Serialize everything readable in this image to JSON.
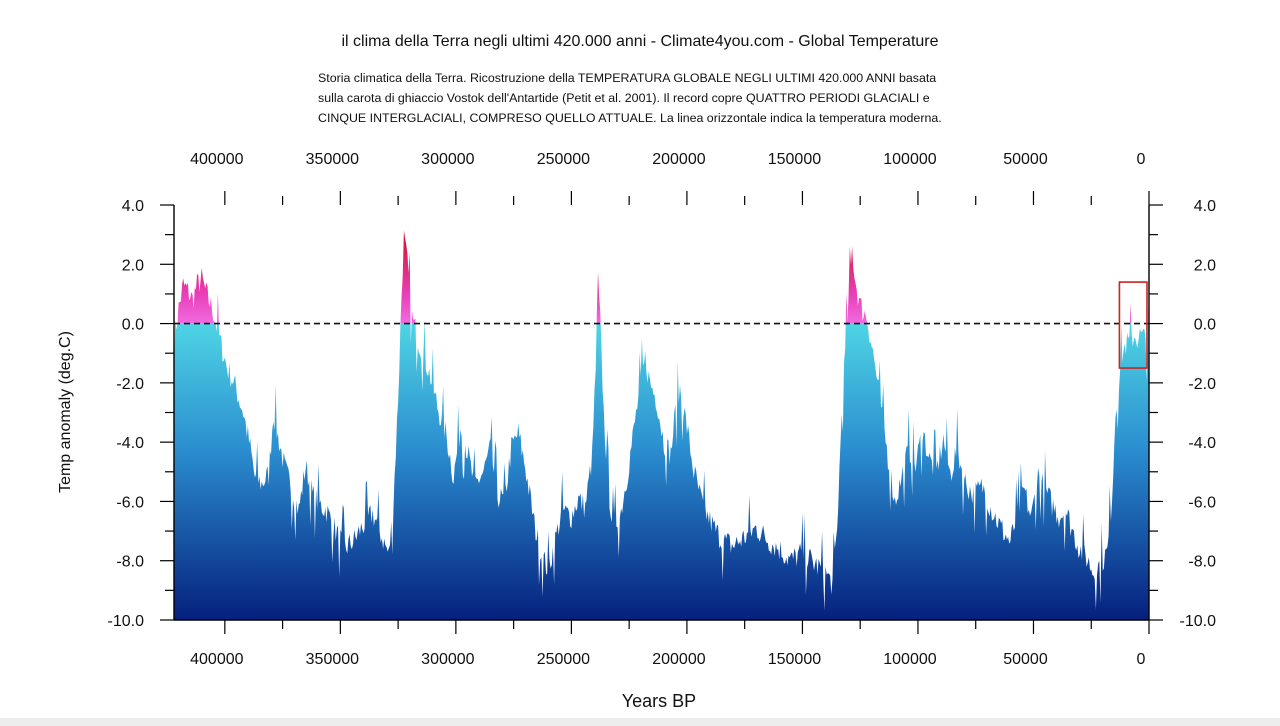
{
  "title": "il clima della Terra negli ultimi 420.000 anni - Climate4you.com - Global Temperature",
  "subtitle_lines": [
    "Storia climatica della Terra. Ricostruzione della TEMPERATURA GLOBALE NEGLI ULTIMI 420.000 ANNI basata",
    "sulla carota di ghiaccio Vostok dell'Antartide (Petit et al. 2001). Il record copre QUATTRO PERIODI GLACIALI e",
    "CINQUE INTERGLACIALI, COMPRESO QUELLO ATTUALE. La linea orizzontale indica la temperatura moderna."
  ],
  "chart_data": {
    "type": "area",
    "title": "il clima della Terra negli ultimi 420.000 anni - Climate4you.com - Global Temperature",
    "xlabel": "Years BP",
    "ylabel": "Temp anomaly (deg.C)",
    "xlim": [
      422000,
      0
    ],
    "ylim": [
      -10,
      4
    ],
    "x_reversed": true,
    "x_ticks": [
      "400000",
      "350000",
      "300000",
      "250000",
      "200000",
      "150000",
      "100000",
      "50000",
      "0"
    ],
    "x_tick_values": [
      400000,
      350000,
      300000,
      250000,
      200000,
      150000,
      100000,
      50000,
      0
    ],
    "y_ticks": [
      "4.0",
      "2.0",
      "0.0",
      "-2.0",
      "-4.0",
      "-6.0",
      "-8.0",
      "-10.0"
    ],
    "y_tick_values": [
      4,
      2,
      0,
      -2,
      -4,
      -6,
      -8,
      -10
    ],
    "reference_line": {
      "y": 0,
      "style": "dashed"
    },
    "highlight_box": {
      "x_range": [
        11500,
        0
      ],
      "y_range": [
        -1.5,
        1.4
      ]
    },
    "colors": {
      "fill_top": "#4fd4e4",
      "fill_mid": "#2b8fd0",
      "fill_bottom": "#06207e",
      "warm_low": "#f06adf",
      "warm_high": "#d40d1f",
      "highlight_box": "#cc2222",
      "axis": "#000000"
    },
    "series": [
      {
        "values": [
          [
            422000,
            -0.5
          ],
          [
            420000,
            0.5
          ],
          [
            418000,
            1.3
          ],
          [
            416000,
            1.1
          ],
          [
            414000,
            0.8
          ],
          [
            412000,
            1.3
          ],
          [
            410000,
            1.5
          ],
          [
            408000,
            1.0
          ],
          [
            405000,
            0.4
          ],
          [
            402000,
            -0.6
          ],
          [
            399000,
            -1.5
          ],
          [
            396000,
            -2.0
          ],
          [
            392000,
            -3.0
          ],
          [
            389000,
            -4.2
          ],
          [
            387000,
            -5.2
          ],
          [
            384000,
            -5.4
          ],
          [
            381000,
            -5.1
          ],
          [
            379000,
            -3.0
          ],
          [
            377000,
            -3.8
          ],
          [
            374000,
            -4.9
          ],
          [
            371000,
            -5.6
          ],
          [
            368000,
            -6.3
          ],
          [
            365000,
            -4.8
          ],
          [
            362000,
            -5.8
          ],
          [
            359000,
            -6.1
          ],
          [
            356000,
            -6.3
          ],
          [
            352000,
            -7.0
          ],
          [
            348000,
            -7.6
          ],
          [
            344000,
            -7.3
          ],
          [
            340000,
            -6.8
          ],
          [
            336000,
            -6.4
          ],
          [
            332000,
            -7.2
          ],
          [
            329000,
            -7.8
          ],
          [
            327000,
            -6.0
          ],
          [
            325000,
            -2.5
          ],
          [
            323500,
            1.0
          ],
          [
            322500,
            2.9
          ],
          [
            321000,
            2.0
          ],
          [
            319000,
            0.2
          ],
          [
            316000,
            -0.6
          ],
          [
            312000,
            -1.5
          ],
          [
            308000,
            -2.8
          ],
          [
            304000,
            -3.8
          ],
          [
            301000,
            -5.2
          ],
          [
            298000,
            -3.5
          ],
          [
            295000,
            -4.3
          ],
          [
            292000,
            -5.5
          ],
          [
            288000,
            -5.0
          ],
          [
            285000,
            -4.2
          ],
          [
            282000,
            -5.8
          ],
          [
            279000,
            -6.0
          ],
          [
            276000,
            -4.2
          ],
          [
            273000,
            -3.7
          ],
          [
            270000,
            -4.8
          ],
          [
            266000,
            -6.8
          ],
          [
            263000,
            -7.8
          ],
          [
            260000,
            -8.3
          ],
          [
            257000,
            -7.3
          ],
          [
            254000,
            -6.3
          ],
          [
            250000,
            -6.5
          ],
          [
            247000,
            -5.9
          ],
          [
            244000,
            -6.2
          ],
          [
            241000,
            -4.5
          ],
          [
            239500,
            -1.5
          ],
          [
            238500,
            1.5
          ],
          [
            237500,
            0.0
          ],
          [
            236000,
            -3.0
          ],
          [
            234000,
            -5.5
          ],
          [
            232000,
            -6.8
          ],
          [
            229000,
            -6.5
          ],
          [
            226000,
            -5.2
          ],
          [
            223000,
            -3.6
          ],
          [
            220000,
            -2.0
          ],
          [
            218000,
            -1.2
          ],
          [
            216000,
            -2.0
          ],
          [
            213000,
            -2.6
          ],
          [
            210000,
            -4.0
          ],
          [
            207000,
            -4.4
          ],
          [
            205000,
            -3.0
          ],
          [
            203000,
            -2.2
          ],
          [
            200000,
            -3.5
          ],
          [
            197000,
            -5.0
          ],
          [
            193000,
            -6.2
          ],
          [
            189000,
            -6.8
          ],
          [
            185000,
            -7.3
          ],
          [
            180000,
            -7.5
          ],
          [
            175000,
            -7.2
          ],
          [
            170000,
            -6.9
          ],
          [
            165000,
            -7.3
          ],
          [
            160000,
            -7.6
          ],
          [
            155000,
            -8.0
          ],
          [
            150000,
            -7.7
          ],
          [
            145000,
            -8.1
          ],
          [
            140000,
            -8.4
          ],
          [
            137000,
            -8.8
          ],
          [
            135000,
            -7.0
          ],
          [
            133000,
            -3.0
          ],
          [
            131000,
            -0.3
          ],
          [
            129500,
            1.3
          ],
          [
            128500,
            2.5
          ],
          [
            127000,
            1.4
          ],
          [
            125000,
            0.6
          ],
          [
            122000,
            0.2
          ],
          [
            119000,
            -1.2
          ],
          [
            116000,
            -2.8
          ],
          [
            113000,
            -4.5
          ],
          [
            110000,
            -6.0
          ],
          [
            107000,
            -5.2
          ],
          [
            104000,
            -4.2
          ],
          [
            101000,
            -4.8
          ],
          [
            98000,
            -3.6
          ],
          [
            95000,
            -4.6
          ],
          [
            92000,
            -5.0
          ],
          [
            89000,
            -3.9
          ],
          [
            86000,
            -5.1
          ],
          [
            83000,
            -4.2
          ],
          [
            80000,
            -5.3
          ],
          [
            76000,
            -5.8
          ],
          [
            72000,
            -5.5
          ],
          [
            68000,
            -6.3
          ],
          [
            64000,
            -6.9
          ],
          [
            60000,
            -7.4
          ],
          [
            57000,
            -6.4
          ],
          [
            54000,
            -5.6
          ],
          [
            51000,
            -6.6
          ],
          [
            48000,
            -5.1
          ],
          [
            45000,
            -5.6
          ],
          [
            42000,
            -6.1
          ],
          [
            39000,
            -6.5
          ],
          [
            36000,
            -6.3
          ],
          [
            33000,
            -7.0
          ],
          [
            30000,
            -7.6
          ],
          [
            27000,
            -7.9
          ],
          [
            24000,
            -8.4
          ],
          [
            21000,
            -8.1
          ],
          [
            18000,
            -7.7
          ],
          [
            16000,
            -5.8
          ],
          [
            14500,
            -3.0
          ],
          [
            13000,
            -1.9
          ],
          [
            11500,
            -1.0
          ],
          [
            10000,
            -0.7
          ],
          [
            8000,
            -0.6
          ],
          [
            6500,
            -0.4
          ],
          [
            5000,
            -0.5
          ],
          [
            3500,
            -0.4
          ],
          [
            2000,
            -0.5
          ],
          [
            500,
            -0.6
          ],
          [
            0,
            -0.7
          ]
        ]
      }
    ]
  }
}
